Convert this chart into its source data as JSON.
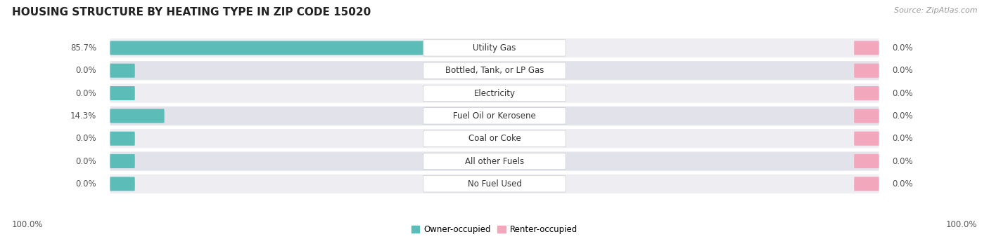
{
  "title": "HOUSING STRUCTURE BY HEATING TYPE IN ZIP CODE 15020",
  "source": "Source: ZipAtlas.com",
  "categories": [
    "Utility Gas",
    "Bottled, Tank, or LP Gas",
    "Electricity",
    "Fuel Oil or Kerosene",
    "Coal or Coke",
    "All other Fuels",
    "No Fuel Used"
  ],
  "owner_values": [
    85.7,
    0.0,
    0.0,
    14.3,
    0.0,
    0.0,
    0.0
  ],
  "renter_values": [
    0.0,
    0.0,
    0.0,
    0.0,
    0.0,
    0.0,
    0.0
  ],
  "owner_color": "#5bbcb8",
  "renter_color": "#f2a7bc",
  "row_bg_even": "#ededf2",
  "row_bg_odd": "#e2e2ea",
  "max_value": 100.0,
  "title_fontsize": 11,
  "cat_fontsize": 8.5,
  "val_fontsize": 8.5,
  "axis_label_left": "100.0%",
  "axis_label_right": "100.0%",
  "background_color": "#ffffff",
  "legend_owner": "Owner-occupied",
  "legend_renter": "Renter-occupied"
}
